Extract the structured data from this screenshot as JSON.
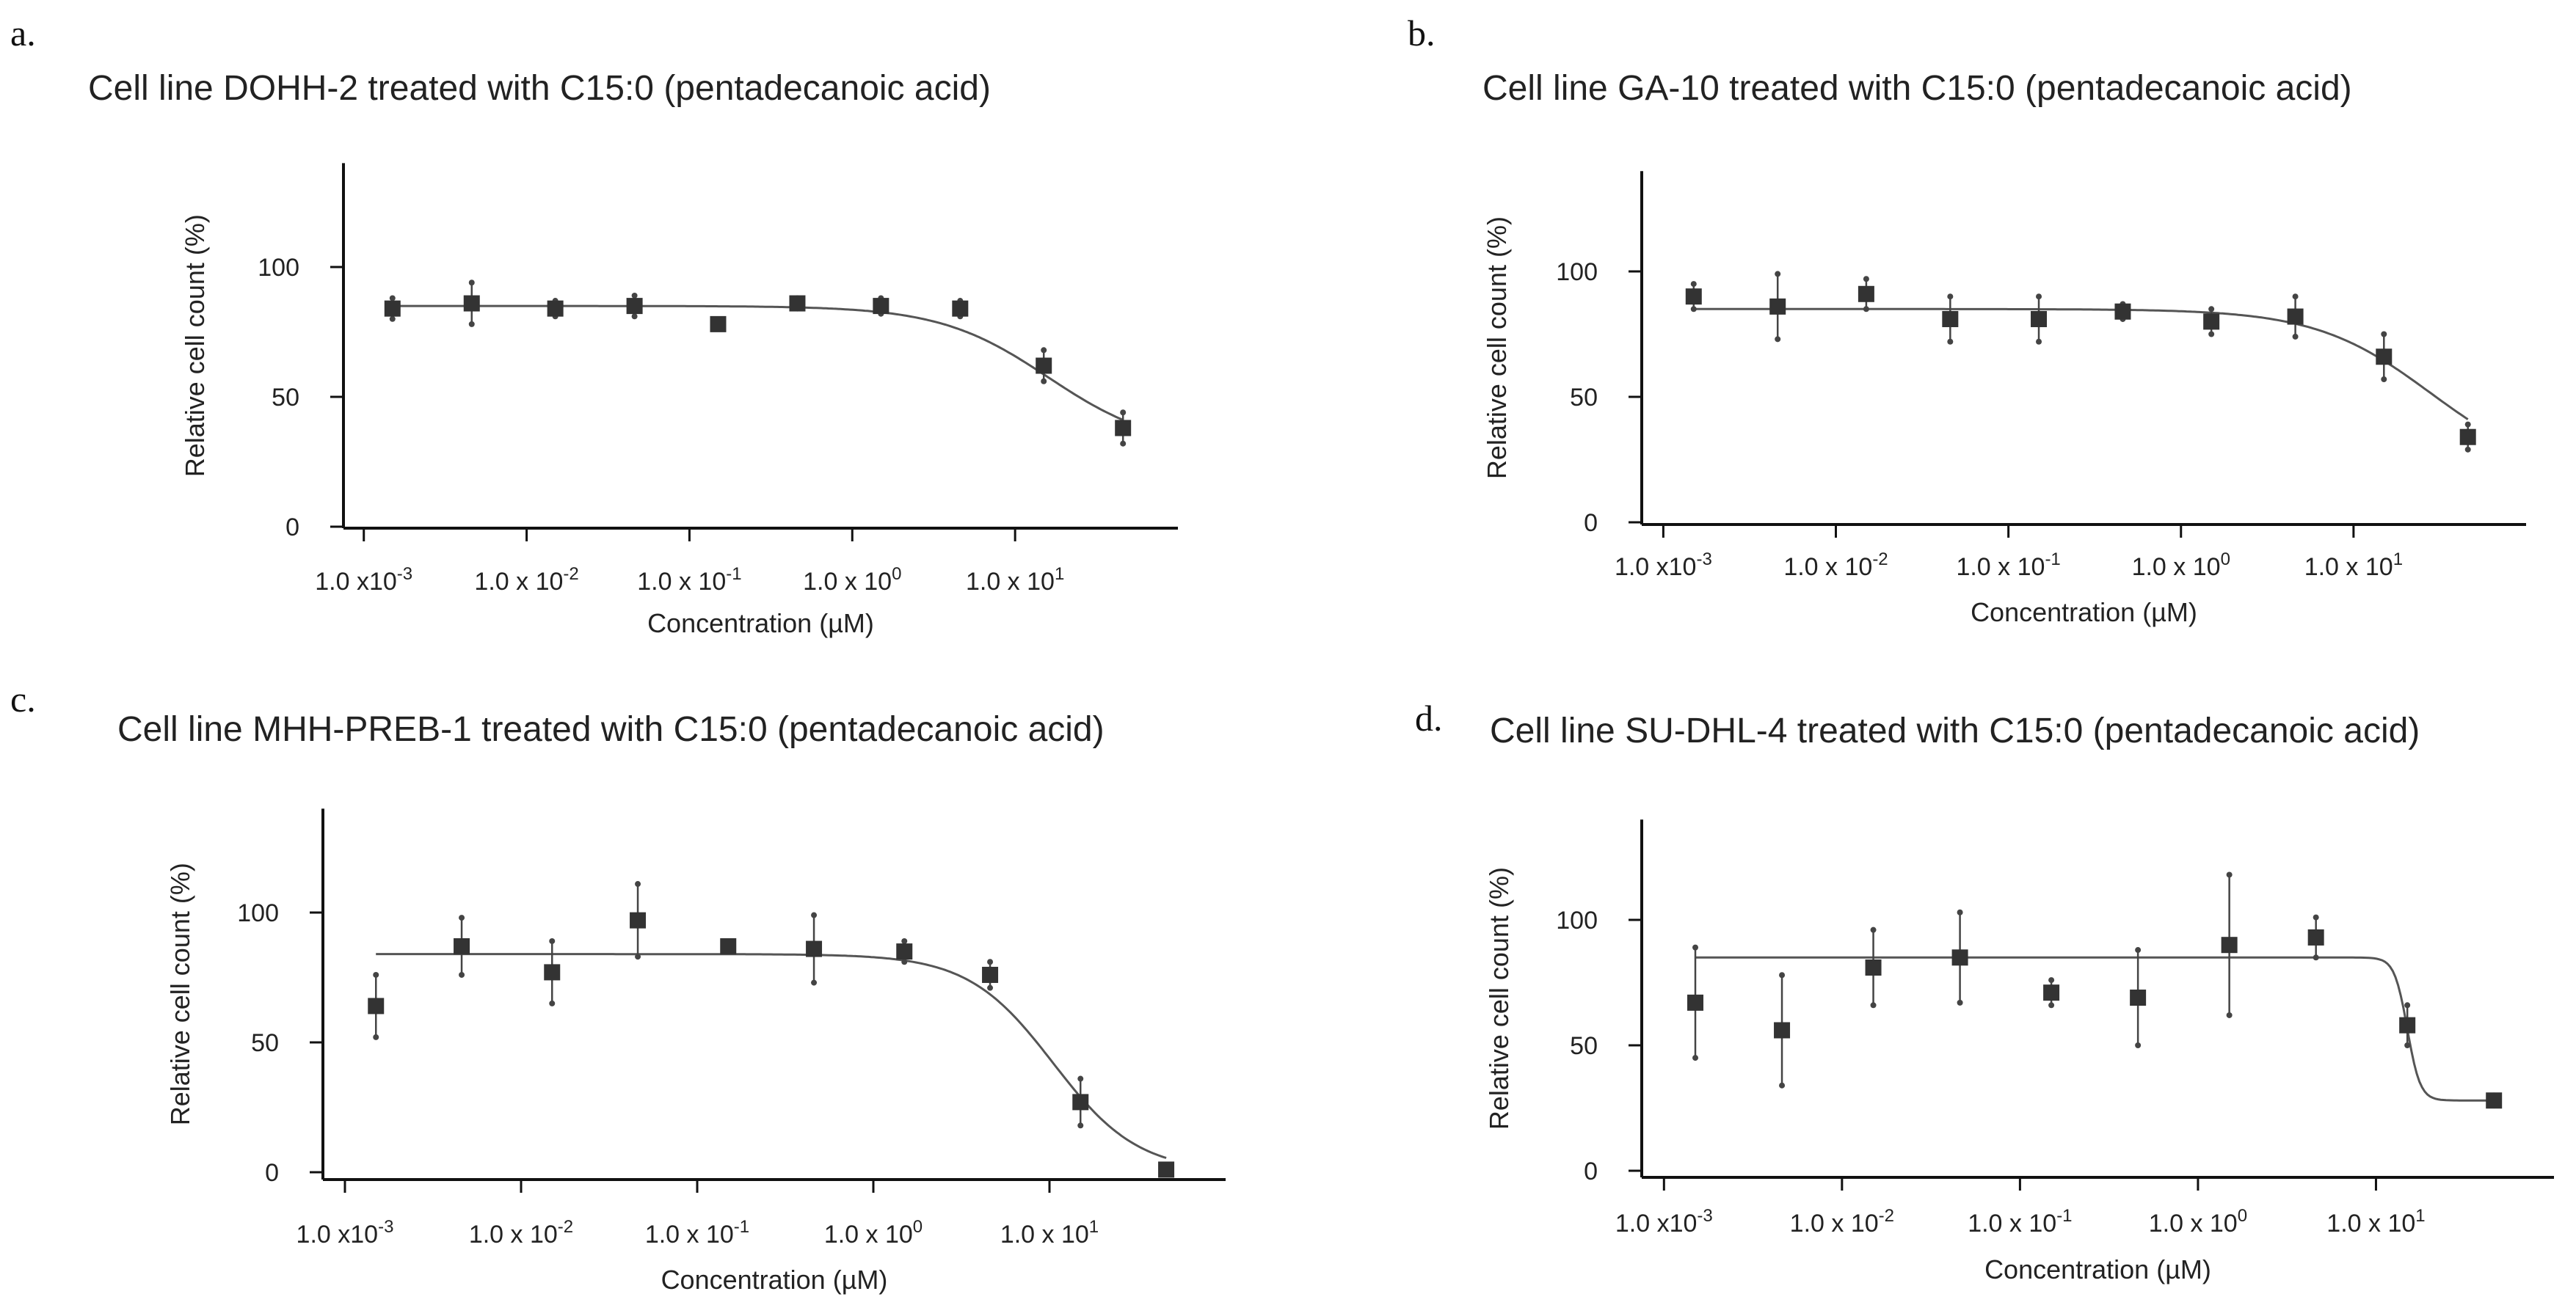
{
  "colors": {
    "marker": "#333333",
    "curve": "#555555",
    "axis": "#111111"
  },
  "chart_data": [
    {
      "type": "scatter",
      "panel_label": "a.",
      "title": "Cell line DOHH-2 treated with C15:0 (pentadecanoic acid)",
      "xlabel": "Concentration (µM)",
      "ylabel": "Relative cell count (%)",
      "x_scale": "log",
      "x_ticks": [
        0.001,
        0.01,
        0.1,
        1,
        10
      ],
      "x_tick_labels": [
        "1.0 x10-3",
        "1.0 x 10-2",
        "1.0 x 10-1",
        "1.0 x 10^0",
        "1.0 x 10^1"
      ],
      "y_ticks": [
        0,
        50,
        100
      ],
      "y_tick_labels": [
        "0",
        "50",
        "100"
      ],
      "xlim": [
        0.00075,
        100
      ],
      "ylim": [
        0,
        140
      ],
      "grid": false,
      "legend": "none",
      "x": [
        0.0015,
        0.0046,
        0.015,
        0.046,
        0.15,
        0.46,
        1.5,
        4.6,
        15,
        46
      ],
      "y": [
        84,
        86,
        84,
        85,
        78,
        86,
        85,
        84,
        62,
        38
      ],
      "error": [
        4,
        8,
        3,
        4,
        0,
        2,
        3,
        3,
        6,
        6
      ],
      "fit": {
        "top": 85,
        "bottom": 30,
        "ec50": 16,
        "hill": 1.3
      }
    },
    {
      "type": "scatter",
      "panel_label": "b.",
      "title": "Cell line GA-10 treated with C15:0 (pentadecanoic acid)",
      "xlabel": "Concentration (µM)",
      "ylabel": "Relative cell count (%)",
      "x_scale": "log",
      "x_ticks": [
        0.001,
        0.01,
        0.1,
        1,
        10
      ],
      "x_tick_labels": [
        "1.0 x10-3",
        "1.0 x 10-2",
        "1.0 x 10-1",
        "1.0 x 10^0",
        "1.0 x 10^1"
      ],
      "y_ticks": [
        0,
        50,
        100
      ],
      "y_tick_labels": [
        "0",
        "50",
        "100"
      ],
      "xlim": [
        0.00075,
        100
      ],
      "ylim": [
        0,
        140
      ],
      "grid": false,
      "legend": "none",
      "x": [
        0.0015,
        0.0046,
        0.015,
        0.046,
        0.15,
        0.46,
        1.5,
        4.6,
        15,
        46
      ],
      "y": [
        90,
        86,
        91,
        81,
        81,
        84,
        80,
        82,
        66,
        34
      ],
      "error": [
        5,
        13,
        6,
        9,
        9,
        3,
        5,
        8,
        9,
        5
      ],
      "fit": {
        "top": 85,
        "bottom": 18,
        "ec50": 28,
        "hill": 1.3
      }
    },
    {
      "type": "scatter",
      "panel_label": "c.",
      "title": "Cell line MHH-PREB-1 treated with C15:0 (pentadecanoic acid)",
      "xlabel": "Concentration (µM)",
      "ylabel": "Relative cell count (%)",
      "x_scale": "log",
      "x_ticks": [
        0.001,
        0.01,
        0.1,
        1,
        10
      ],
      "x_tick_labels": [
        "1.0 x10-3",
        "1.0 x 10-2",
        "1.0 x 10-1",
        "1.0 x 10^0",
        "1.0 x 10^1"
      ],
      "y_ticks": [
        0,
        50,
        100
      ],
      "y_tick_labels": [
        "0",
        "50",
        "100"
      ],
      "xlim": [
        0.00075,
        100
      ],
      "ylim": [
        0,
        140
      ],
      "grid": false,
      "legend": "none",
      "x": [
        0.0015,
        0.0046,
        0.015,
        0.046,
        0.15,
        0.46,
        1.5,
        4.6,
        15,
        46
      ],
      "y": [
        64,
        87,
        77,
        97,
        87,
        86,
        85,
        76,
        27,
        1
      ],
      "error": [
        12,
        11,
        12,
        14,
        1,
        13,
        4,
        5,
        9,
        1
      ],
      "fit": {
        "top": 84,
        "bottom": 0,
        "ec50": 10.5,
        "hill": 1.8
      }
    },
    {
      "type": "scatter",
      "panel_label": "d.",
      "title": "Cell line SU-DHL-4 treated with C15:0 (pentadecanoic acid)",
      "xlabel": "Concentration (µM)",
      "ylabel": "Relative cell count (%)",
      "x_scale": "log",
      "x_ticks": [
        0.001,
        0.01,
        0.1,
        1,
        10
      ],
      "x_tick_labels": [
        "1.0 x10-3",
        "1.0 x 10-2",
        "1.0 x 10-1",
        "1.0 x 10^0",
        "1.0 x 10^1"
      ],
      "y_ticks": [
        0,
        50,
        100
      ],
      "y_tick_labels": [
        "0",
        "50",
        "100"
      ],
      "xlim": [
        0.00075,
        100
      ],
      "ylim": [
        0,
        140
      ],
      "grid": false,
      "legend": "none",
      "x": [
        0.0015,
        0.0046,
        0.015,
        0.046,
        0.15,
        0.46,
        1.5,
        4.6,
        15,
        46
      ],
      "y": [
        67,
        56,
        81,
        85,
        71,
        69,
        90,
        93,
        58,
        28
      ],
      "error": [
        22,
        22,
        15,
        18,
        5,
        19,
        28,
        8,
        8,
        2
      ],
      "fit": {
        "top": 85,
        "bottom": 28,
        "ec50": 15,
        "hill": 12
      }
    }
  ]
}
